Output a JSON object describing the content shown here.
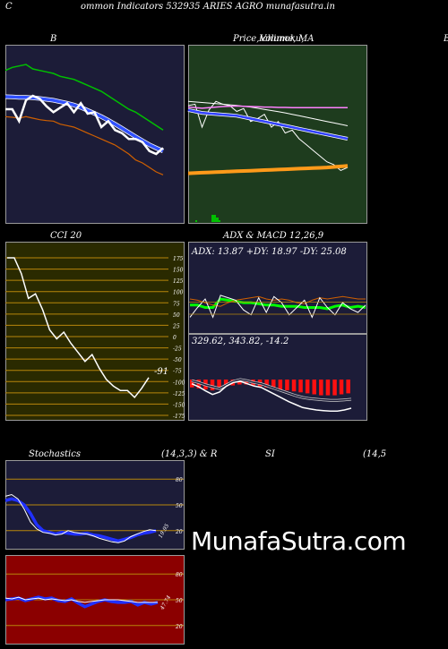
{
  "header": {
    "title": "ommon  Indicators 532935 ARIES AGRO munafasutra.in",
    "left_letter": "C",
    "right_letter": "B"
  },
  "panels": {
    "bollinger": {
      "title": "B"
    },
    "price": {
      "title_parts": [
        "Price,",
        "Ichimoku,",
        "Volume,",
        "MA"
      ]
    },
    "cci": {
      "title": "CCI 20",
      "value_label": "-91",
      "ticks": [
        "175",
        "150",
        "125",
        "100",
        "75",
        "50",
        "25",
        "0",
        "-25",
        "-50",
        "-75",
        "-100",
        "-125",
        "-150",
        "-175"
      ]
    },
    "adx": {
      "title": "ADX  & MACD 12,26,9",
      "readout": "ADX: 13.87  +DY: 18.97 -DY: 25.08"
    },
    "macd": {
      "readout": "329.62,  343.82,  -14.2"
    },
    "stochastics": {
      "title_left": "Stochastics",
      "title_mid": "(14,3,3) & R",
      "ticks": [
        "80",
        "50",
        "20"
      ],
      "value_label": "19.95"
    },
    "rsi": {
      "title_left": "SI",
      "title_right": "(14,5",
      "ticks": [
        "80",
        "50",
        "20"
      ],
      "value_label": "47.74"
    }
  },
  "brand": "MunafaSutra.com",
  "colors": {
    "navy": "#1c1c38",
    "green": "#1e3c1e",
    "olive": "#2a2a00",
    "maroon": "#8b0000",
    "orange_line": "#c06000",
    "blue_line": "#2a3cff"
  },
  "chart_data": [
    {
      "type": "line",
      "panel": "bollinger",
      "title": "B",
      "series": [
        {
          "values": [
            1000,
            1010,
            1015,
            1020,
            1005,
            1000,
            995,
            990,
            980,
            975,
            970,
            960,
            950,
            940,
            930,
            915,
            900,
            885,
            870,
            860,
            845,
            830,
            815,
            800
          ]
        },
        {
          "values": [
            912,
            911,
            910,
            910,
            908,
            906,
            903,
            900,
            895,
            890,
            884,
            876,
            866,
            856,
            845,
            833,
            820,
            806,
            792,
            778,
            764,
            751,
            740,
            730
          ]
        },
        {
          "values": [
            845,
            843,
            840,
            845,
            840,
            835,
            832,
            830,
            820,
            815,
            810,
            800,
            790,
            780,
            770,
            760,
            750,
            735,
            720,
            700,
            690,
            675,
            660,
            650
          ]
        },
        {
          "values": [
            870,
            870,
            830,
            900,
            915,
            905,
            880,
            860,
            875,
            890,
            860,
            890,
            855,
            860,
            810,
            830,
            800,
            790,
            770,
            770,
            760,
            730,
            720,
            740
          ]
        }
      ]
    },
    {
      "type": "line",
      "panel": "price",
      "series": [
        {
          "values": [
            855,
            860,
            780,
            840,
            870,
            860,
            855,
            835,
            845,
            800,
            810,
            825,
            780,
            800,
            760,
            770,
            740,
            720,
            700,
            680,
            660,
            650,
            630,
            640
          ]
        },
        {
          "values": [
            840,
            835,
            830,
            828,
            826,
            824,
            822,
            820,
            815,
            810,
            805,
            800,
            795,
            790,
            785,
            780,
            775,
            770,
            765,
            760,
            755,
            750,
            745,
            740
          ]
        },
        {
          "values": [
            870,
            868,
            866,
            864,
            862,
            860,
            858,
            856,
            853,
            850,
            846,
            842,
            838,
            834,
            830,
            825,
            820,
            815,
            810,
            805,
            800,
            795,
            790,
            785
          ]
        },
        {
          "values": [
            850,
            848,
            846,
            848,
            850,
            852,
            853,
            854,
            853,
            852,
            851,
            850,
            850,
            849,
            849,
            848,
            848,
            848,
            848,
            848,
            848,
            848,
            848,
            848
          ]
        },
        {
          "values": [
            620,
            621,
            622,
            623,
            624,
            625,
            626,
            627,
            628,
            629,
            630,
            631,
            632,
            633,
            634,
            635,
            636,
            637,
            638,
            639,
            640,
            642,
            644,
            646
          ]
        }
      ]
    },
    {
      "type": "line",
      "panel": "cci",
      "title": "CCI 20",
      "ylim": [
        -175,
        175
      ],
      "series": [
        {
          "values": [
            175,
            175,
            140,
            85,
            95,
            60,
            15,
            -5,
            10,
            -15,
            -35,
            -55,
            -40,
            -70,
            -95,
            -110,
            -120,
            -120,
            -135,
            -115,
            -91
          ]
        }
      ]
    },
    {
      "type": "line",
      "panel": "adx",
      "ylim": [
        0,
        50
      ],
      "series": [
        {
          "values": [
            20,
            20,
            18,
            18,
            25,
            24,
            23,
            22,
            22,
            21,
            20,
            20,
            19,
            19,
            19,
            18,
            18,
            18,
            17,
            19,
            20,
            18,
            19,
            18
          ]
        },
        {
          "values": [
            25,
            24,
            22,
            20,
            19,
            22,
            24,
            25,
            26,
            27,
            25,
            24,
            25,
            24,
            22,
            21,
            24,
            26,
            25,
            26,
            27,
            26,
            25,
            25
          ]
        },
        {
          "values": [
            10,
            18,
            25,
            10,
            28,
            26,
            24,
            16,
            12,
            26,
            14,
            27,
            22,
            12,
            18,
            24,
            10,
            26,
            18,
            12,
            22,
            17,
            14,
            20
          ]
        }
      ]
    },
    {
      "type": "line",
      "panel": "macd",
      "series": [
        {
          "values": [
            375,
            372,
            368,
            365,
            362,
            368,
            374,
            377,
            375,
            372,
            370,
            366,
            362,
            358,
            354,
            350,
            347,
            345,
            344,
            343,
            342,
            342,
            343,
            344
          ]
        },
        {
          "values": [
            370,
            365,
            358,
            352,
            356,
            366,
            372,
            374,
            370,
            366,
            364,
            358,
            352,
            346,
            340,
            335,
            330,
            328,
            326,
            325,
            324,
            324,
            326,
            329
          ]
        }
      ],
      "histogram": [
        -8,
        -9,
        -10,
        -11,
        -10,
        -7,
        -6,
        -5,
        -5,
        -6,
        -7,
        -8,
        -9,
        -10,
        -11,
        -12,
        -13,
        -14,
        -15,
        -16,
        -16,
        -16,
        -15,
        -14
      ]
    },
    {
      "type": "line",
      "panel": "stochastics",
      "ylim": [
        0,
        100
      ],
      "series": [
        {
          "values": [
            55,
            57,
            55,
            50,
            40,
            27,
            20,
            18,
            16,
            18,
            17,
            16,
            16,
            17,
            15,
            14,
            12,
            10,
            8,
            10,
            12,
            15,
            17,
            18,
            20
          ]
        },
        {
          "values": [
            60,
            62,
            57,
            45,
            30,
            22,
            18,
            17,
            15,
            16,
            20,
            18,
            17,
            16,
            14,
            11,
            9,
            7,
            6,
            8,
            13,
            16,
            19,
            21,
            20
          ]
        }
      ]
    },
    {
      "type": "line",
      "panel": "rsi",
      "ylim": [
        0,
        100
      ],
      "series": [
        {
          "values": [
            52,
            51,
            53,
            50,
            51,
            52,
            50,
            51,
            50,
            49,
            50,
            48,
            47,
            48,
            49,
            50,
            50,
            50,
            49,
            48,
            47,
            47,
            47,
            47
          ]
        },
        {
          "values": [
            50,
            51,
            52,
            49,
            51,
            53,
            51,
            52,
            49,
            48,
            51,
            46,
            42,
            45,
            48,
            50,
            48,
            47,
            47,
            48,
            44,
            47,
            45,
            47
          ]
        }
      ]
    }
  ]
}
